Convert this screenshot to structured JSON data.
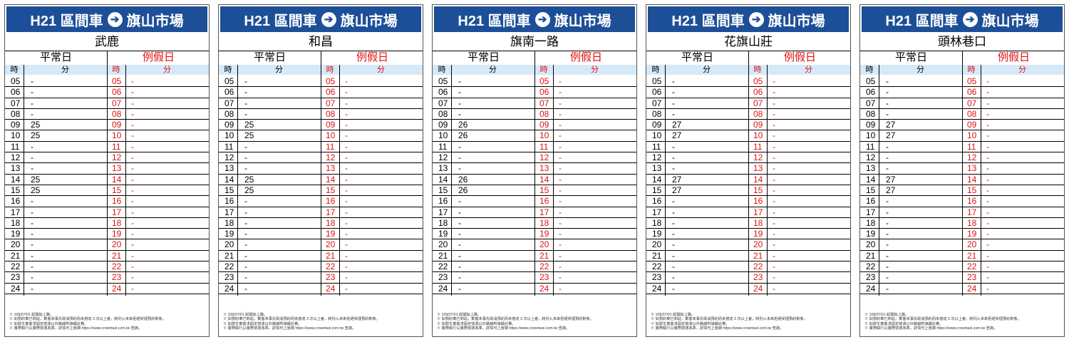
{
  "header_title": "H21 區間車",
  "destination": "旗山市場",
  "arrow_glyph": "➔",
  "labels": {
    "weekday": "平常日",
    "holiday": "例假日",
    "hour": "時",
    "minute": "分"
  },
  "colors": {
    "header_bg": "#1d4f98",
    "holiday_red": "#e01010",
    "column_header_bg": "#d5e9f8"
  },
  "hours": [
    "05",
    "06",
    "07",
    "08",
    "09",
    "10",
    "11",
    "12",
    "13",
    "14",
    "15",
    "16",
    "17",
    "18",
    "19",
    "20",
    "21",
    "22",
    "23",
    "24"
  ],
  "notes": [
    "※ 109/07/01 起開始上路。",
    "※ 如預約車已到站，乘客未事先取消預約而未搭達 3 次以上者，將列入未來拒絕受理預約對象。",
    "※ 如發生乘客求固定營運以外路線則接續計費。",
    "※ 實際執行以實際營運為準，詳情可上官網 https://www.crowntaxi.com.tw 查詢。"
  ],
  "panels": [
    {
      "stop": "武鹿",
      "weekday_minutes": [
        "-",
        "-",
        "-",
        "-",
        "25",
        "25",
        "-",
        "-",
        "-",
        "25",
        "25",
        "-",
        "-",
        "-",
        "-",
        "-",
        "-",
        "-",
        "-",
        "-"
      ],
      "holiday_minutes": [
        "-",
        "-",
        "-",
        "-",
        "-",
        "-",
        "-",
        "-",
        "-",
        "-",
        "-",
        "-",
        "-",
        "-",
        "-",
        "-",
        "-",
        "-",
        "-",
        "-"
      ]
    },
    {
      "stop": "和昌",
      "weekday_minutes": [
        "-",
        "-",
        "-",
        "-",
        "25",
        "25",
        "-",
        "-",
        "-",
        "25",
        "25",
        "-",
        "-",
        "-",
        "-",
        "-",
        "-",
        "-",
        "-",
        "-"
      ],
      "holiday_minutes": [
        "-",
        "-",
        "-",
        "-",
        "-",
        "-",
        "-",
        "-",
        "-",
        "-",
        "-",
        "-",
        "-",
        "-",
        "-",
        "-",
        "-",
        "-",
        "-",
        "-"
      ]
    },
    {
      "stop": "旗南一路",
      "weekday_minutes": [
        "-",
        "-",
        "-",
        "-",
        "26",
        "26",
        "-",
        "-",
        "-",
        "26",
        "26",
        "-",
        "-",
        "-",
        "-",
        "-",
        "-",
        "-",
        "-",
        "-"
      ],
      "holiday_minutes": [
        "-",
        "-",
        "-",
        "-",
        "-",
        "-",
        "-",
        "-",
        "-",
        "-",
        "-",
        "-",
        "-",
        "-",
        "-",
        "-",
        "-",
        "-",
        "-",
        "-"
      ]
    },
    {
      "stop": "花旗山莊",
      "weekday_minutes": [
        "-",
        "-",
        "-",
        "-",
        "27",
        "27",
        "-",
        "-",
        "-",
        "27",
        "27",
        "-",
        "-",
        "-",
        "-",
        "-",
        "-",
        "-",
        "-",
        "-"
      ],
      "holiday_minutes": [
        "-",
        "-",
        "-",
        "-",
        "-",
        "-",
        "-",
        "-",
        "-",
        "-",
        "-",
        "-",
        "-",
        "-",
        "-",
        "-",
        "-",
        "-",
        "-",
        "-"
      ]
    },
    {
      "stop": "頭林巷口",
      "weekday_minutes": [
        "-",
        "-",
        "-",
        "-",
        "27",
        "27",
        "-",
        "-",
        "-",
        "27",
        "27",
        "-",
        "-",
        "-",
        "-",
        "-",
        "-",
        "-",
        "-",
        "-"
      ],
      "holiday_minutes": [
        "-",
        "-",
        "-",
        "-",
        "-",
        "-",
        "-",
        "-",
        "-",
        "-",
        "-",
        "-",
        "-",
        "-",
        "-",
        "-",
        "-",
        "-",
        "-",
        "-"
      ]
    }
  ]
}
